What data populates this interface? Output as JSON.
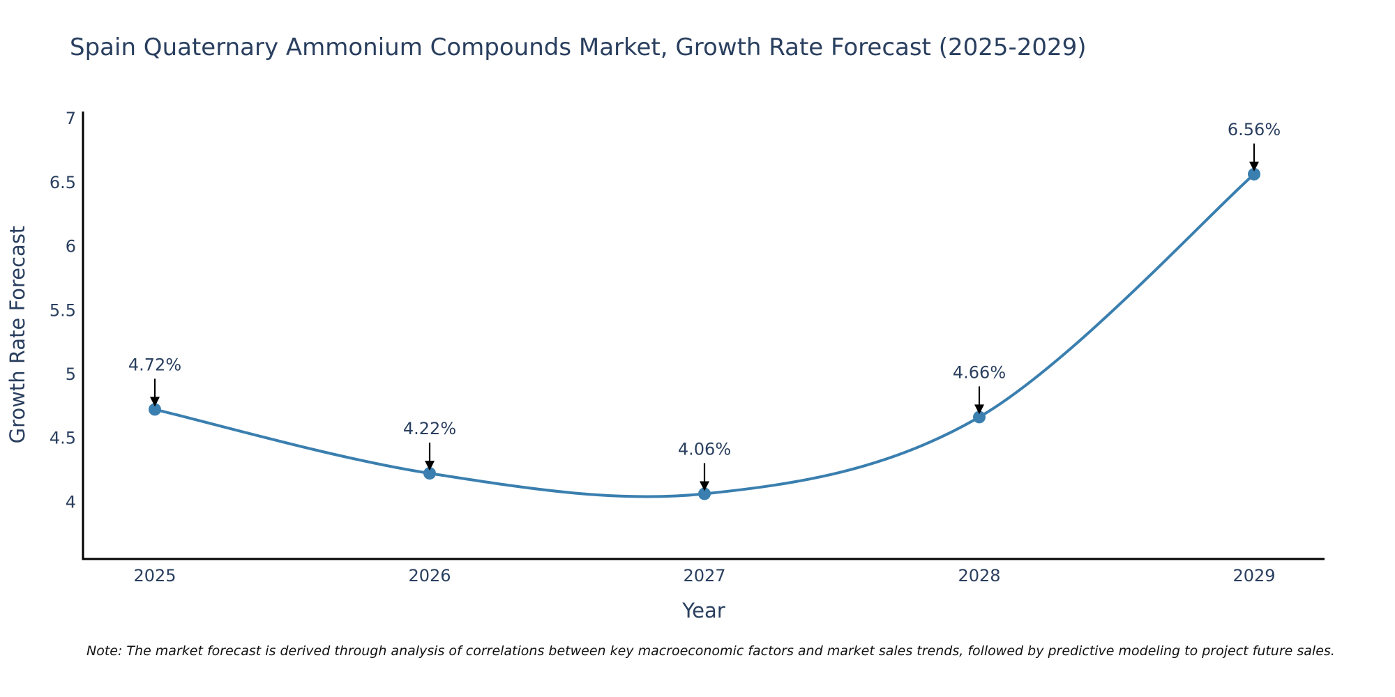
{
  "chart_data": {
    "type": "line",
    "title": "Spain Quaternary Ammonium Compounds Market, Growth Rate Forecast (2025-2029)",
    "xlabel": "Year",
    "ylabel": "Growth Rate Forecast",
    "categories": [
      "2025",
      "2026",
      "2027",
      "2028",
      "2029"
    ],
    "series": [
      {
        "name": "Growth Rate Forecast",
        "values": [
          4.72,
          4.22,
          4.06,
          4.66,
          6.56
        ],
        "data_labels": [
          "4.72%",
          "4.22%",
          "4.06%",
          "4.66%",
          "6.56%"
        ]
      }
    ],
    "ylim": [
      3.55,
      7.05
    ],
    "y_ticks": [
      4,
      4.5,
      5,
      5.5,
      6,
      6.5,
      7
    ],
    "y_tick_labels": [
      "4",
      "4.5",
      "5",
      "5.5",
      "6",
      "6.5",
      "7"
    ],
    "grid": false,
    "line_shape": "spline",
    "colors": {
      "line": "#3a7faf",
      "marker": "#3a7faf",
      "arrow": "#000000",
      "axis": "#000000",
      "text": "#2a3f5f"
    }
  },
  "note": "Note: The market forecast is derived through analysis of correlations between key macroeconomic factors and market sales trends, followed by predictive modeling to project future sales."
}
